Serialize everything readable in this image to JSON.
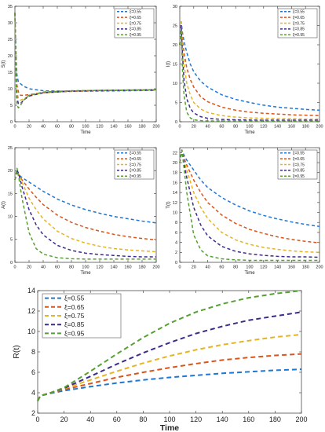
{
  "chart_data": [
    {
      "type": "line",
      "ylabel": "S(t)",
      "xlabel": "Time",
      "xlim": [
        0,
        200
      ],
      "ylim": [
        0,
        35
      ],
      "xticks": [
        0,
        20,
        40,
        60,
        80,
        100,
        120,
        140,
        160,
        180,
        200
      ],
      "yticks": [
        0,
        5,
        10,
        15,
        20,
        25,
        30,
        35
      ],
      "legend_position": "top-right",
      "series": [
        {
          "name": "ξ=0.55",
          "color": "#1f77d4",
          "x": [
            0,
            1,
            2,
            3,
            5,
            8,
            12,
            20,
            40,
            80,
            120,
            160,
            200
          ],
          "y": [
            33,
            25,
            18,
            14,
            12,
            11.5,
            10.8,
            10,
            9.4,
            9.2,
            9.3,
            9.4,
            9.5
          ]
        },
        {
          "name": "ξ=0.65",
          "color": "#d9541a",
          "x": [
            0,
            1,
            2,
            3,
            5,
            8,
            12,
            20,
            40,
            80,
            120,
            160,
            200
          ],
          "y": [
            33,
            23,
            15,
            11,
            9,
            8,
            8,
            8.2,
            8.8,
            9.2,
            9.4,
            9.5,
            9.6
          ]
        },
        {
          "name": "ξ=0.75",
          "color": "#e6b422",
          "x": [
            0,
            1,
            2,
            3,
            5,
            8,
            12,
            20,
            40,
            80,
            120,
            160,
            200
          ],
          "y": [
            33,
            22,
            13,
            9,
            7,
            6.5,
            7,
            7.8,
            8.7,
            9.3,
            9.5,
            9.6,
            9.7
          ]
        },
        {
          "name": "ξ=0.85",
          "color": "#3d2a8a",
          "x": [
            0,
            1,
            2,
            3,
            5,
            8,
            12,
            20,
            40,
            80,
            120,
            160,
            200
          ],
          "y": [
            33,
            21,
            11,
            7,
            5.5,
            5.5,
            6.5,
            7.8,
            8.8,
            9.3,
            9.5,
            9.6,
            9.7
          ]
        },
        {
          "name": "ξ=0.95",
          "color": "#56a031",
          "x": [
            0,
            1,
            2,
            3,
            5,
            8,
            12,
            20,
            40,
            80,
            120,
            160,
            200
          ],
          "y": [
            33,
            20,
            9,
            5,
            4.2,
            5,
            6.5,
            8,
            9,
            9.4,
            9.5,
            9.6,
            9.7
          ]
        }
      ]
    },
    {
      "type": "line",
      "ylabel": "I(t)",
      "xlabel": "Time",
      "xlim": [
        0,
        200
      ],
      "ylim": [
        0,
        30
      ],
      "xticks": [
        0,
        20,
        40,
        60,
        80,
        100,
        120,
        140,
        160,
        180,
        200
      ],
      "yticks": [
        0,
        5,
        10,
        15,
        20,
        25,
        30
      ],
      "legend_position": "top-right",
      "series": [
        {
          "name": "ξ=0.55",
          "color": "#1f77d4",
          "x": [
            0,
            2,
            4,
            6,
            10,
            15,
            20,
            30,
            40,
            60,
            80,
            100,
            120,
            140,
            160,
            180,
            200
          ],
          "y": [
            20,
            26,
            23,
            21,
            18,
            15,
            13,
            10.5,
            9,
            7,
            5.8,
            5,
            4.3,
            3.8,
            3.5,
            3.2,
            3
          ]
        },
        {
          "name": "ξ=0.65",
          "color": "#d9541a",
          "x": [
            0,
            2,
            4,
            6,
            10,
            15,
            20,
            30,
            40,
            60,
            80,
            100,
            120,
            140,
            160,
            180,
            200
          ],
          "y": [
            20,
            26,
            21,
            18,
            14,
            11,
            9,
            6.5,
            5.2,
            3.8,
            3,
            2.5,
            2.2,
            2,
            1.8,
            1.7,
            1.6
          ]
        },
        {
          "name": "ξ=0.75",
          "color": "#e6b422",
          "x": [
            0,
            2,
            4,
            6,
            10,
            15,
            20,
            30,
            40,
            60,
            80,
            100,
            120,
            140,
            160,
            180,
            200
          ],
          "y": [
            20,
            26,
            19,
            15,
            10,
            7,
            5,
            3.3,
            2.4,
            1.6,
            1.2,
            1,
            0.9,
            0.8,
            0.8,
            0.7,
            0.7
          ]
        },
        {
          "name": "ξ=0.85",
          "color": "#3d2a8a",
          "x": [
            0,
            2,
            4,
            6,
            10,
            15,
            20,
            30,
            40,
            60,
            80,
            100,
            120,
            140,
            160,
            180,
            200
          ],
          "y": [
            20,
            25,
            17,
            11,
            6,
            3.5,
            2.3,
            1.3,
            0.9,
            0.6,
            0.5,
            0.45,
            0.4,
            0.4,
            0.4,
            0.4,
            0.4
          ]
        },
        {
          "name": "ξ=0.95",
          "color": "#56a031",
          "x": [
            0,
            2,
            4,
            6,
            10,
            15,
            20,
            30,
            40,
            60,
            80,
            100,
            120,
            140,
            160,
            180,
            200
          ],
          "y": [
            20,
            24,
            13,
            7,
            2.5,
            1,
            0.5,
            0.3,
            0.2,
            0.2,
            0.2,
            0.2,
            0.2,
            0.2,
            0.2,
            0.2,
            0.2
          ]
        }
      ]
    },
    {
      "type": "line",
      "ylabel": "A(t)",
      "xlabel": "Time",
      "xlim": [
        0,
        200
      ],
      "ylim": [
        0,
        25
      ],
      "xticks": [
        0,
        20,
        40,
        60,
        80,
        100,
        120,
        140,
        160,
        180,
        200
      ],
      "yticks": [
        0,
        5,
        10,
        15,
        20,
        25
      ],
      "legend_position": "top-right",
      "series": [
        {
          "name": "ξ=0.55",
          "color": "#1f77d4",
          "x": [
            0,
            3,
            6,
            10,
            20,
            30,
            40,
            60,
            80,
            100,
            120,
            140,
            160,
            180,
            200
          ],
          "y": [
            18,
            19.5,
            19,
            18.5,
            17.5,
            16.5,
            15.5,
            13.8,
            12.5,
            11.5,
            10.7,
            10,
            9.5,
            9,
            8.6
          ]
        },
        {
          "name": "ξ=0.65",
          "color": "#d9541a",
          "x": [
            0,
            3,
            6,
            10,
            20,
            30,
            40,
            60,
            80,
            100,
            120,
            140,
            160,
            180,
            200
          ],
          "y": [
            18,
            19.8,
            19,
            18,
            16,
            14.2,
            12.6,
            10.3,
            8.7,
            7.6,
            6.8,
            6.1,
            5.6,
            5.2,
            4.9
          ]
        },
        {
          "name": "ξ=0.75",
          "color": "#e6b422",
          "x": [
            0,
            3,
            6,
            10,
            20,
            30,
            40,
            60,
            80,
            100,
            120,
            140,
            160,
            180,
            200
          ],
          "y": [
            18,
            20,
            19,
            17.5,
            14,
            11.5,
            9.5,
            6.8,
            5.2,
            4.2,
            3.5,
            3,
            2.7,
            2.5,
            2.3
          ]
        },
        {
          "name": "ξ=0.85",
          "color": "#3d2a8a",
          "x": [
            0,
            3,
            6,
            10,
            20,
            30,
            40,
            60,
            80,
            100,
            120,
            140,
            160,
            180,
            200
          ],
          "y": [
            18,
            20.2,
            19,
            16.5,
            11.5,
            8.2,
            6,
            3.7,
            2.6,
            2,
            1.7,
            1.5,
            1.3,
            1.2,
            1.2
          ]
        },
        {
          "name": "ξ=0.95",
          "color": "#56a031",
          "x": [
            0,
            3,
            6,
            10,
            20,
            30,
            40,
            60,
            80,
            100,
            120,
            140,
            160,
            180,
            200
          ],
          "y": [
            18,
            20.5,
            18,
            14,
            6.5,
            3,
            1.8,
            1,
            0.8,
            0.7,
            0.7,
            0.7,
            0.7,
            0.7,
            0.7
          ]
        }
      ]
    },
    {
      "type": "line",
      "ylabel": "T(t)",
      "xlabel": "Time",
      "xlim": [
        0,
        200
      ],
      "ylim": [
        0,
        23
      ],
      "xticks": [
        0,
        20,
        40,
        60,
        80,
        100,
        120,
        140,
        160,
        180,
        200
      ],
      "yticks": [
        0,
        2,
        4,
        6,
        8,
        10,
        12,
        14,
        16,
        18,
        20,
        22
      ],
      "legend_position": "top-right",
      "series": [
        {
          "name": "ξ=0.55",
          "color": "#1f77d4",
          "x": [
            0,
            3,
            6,
            10,
            20,
            30,
            40,
            60,
            80,
            100,
            120,
            140,
            160,
            180,
            200
          ],
          "y": [
            20,
            22.5,
            21.5,
            20.5,
            18.5,
            16.5,
            15,
            13,
            11.5,
            10.3,
            9.4,
            8.7,
            8.1,
            7.6,
            7.2
          ]
        },
        {
          "name": "ξ=0.65",
          "color": "#d9541a",
          "x": [
            0,
            3,
            6,
            10,
            20,
            30,
            40,
            60,
            80,
            100,
            120,
            140,
            160,
            180,
            200
          ],
          "y": [
            20,
            22.5,
            21,
            19.5,
            16.5,
            14,
            12,
            9.5,
            7.8,
            6.6,
            5.8,
            5.1,
            4.6,
            4.2,
            3.9
          ]
        },
        {
          "name": "ξ=0.75",
          "color": "#e6b422",
          "x": [
            0,
            3,
            6,
            10,
            20,
            30,
            40,
            60,
            80,
            100,
            120,
            140,
            160,
            180,
            200
          ],
          "y": [
            20,
            22.5,
            20.5,
            18.5,
            14,
            11,
            8.8,
            6,
            4.5,
            3.6,
            3,
            2.6,
            2.3,
            2.1,
            2
          ]
        },
        {
          "name": "ξ=0.85",
          "color": "#3d2a8a",
          "x": [
            0,
            3,
            6,
            10,
            20,
            30,
            40,
            60,
            80,
            100,
            120,
            140,
            160,
            180,
            200
          ],
          "y": [
            20,
            22.5,
            20,
            17,
            11,
            7.5,
            5.3,
            3.2,
            2.2,
            1.7,
            1.4,
            1.2,
            1.1,
            1.1,
            1
          ]
        },
        {
          "name": "ξ=0.95",
          "color": "#56a031",
          "x": [
            0,
            3,
            6,
            10,
            20,
            30,
            40,
            60,
            80,
            100,
            120,
            140,
            160,
            180,
            200
          ],
          "y": [
            20,
            22.5,
            19,
            14,
            5.5,
            2.5,
            1.3,
            0.7,
            0.5,
            0.4,
            0.4,
            0.4,
            0.4,
            0.4,
            0.4
          ]
        }
      ]
    },
    {
      "type": "line",
      "ylabel": "R(t)",
      "xlabel": "Time",
      "xlim": [
        0,
        200
      ],
      "ylim": [
        2,
        14
      ],
      "xticks": [
        0,
        20,
        40,
        60,
        80,
        100,
        120,
        140,
        160,
        180,
        200
      ],
      "yticks": [
        2,
        4,
        6,
        8,
        10,
        12,
        14
      ],
      "legend_position": "top-left",
      "series": [
        {
          "name": "ξ=0.55",
          "color": "#1f77d4",
          "x": [
            0,
            2,
            10,
            20,
            40,
            60,
            80,
            100,
            120,
            140,
            160,
            180,
            200
          ],
          "y": [
            3.2,
            3.7,
            3.95,
            4.2,
            4.6,
            4.95,
            5.25,
            5.5,
            5.7,
            5.9,
            6.05,
            6.2,
            6.3
          ]
        },
        {
          "name": "ξ=0.65",
          "color": "#d9541a",
          "x": [
            0,
            2,
            10,
            20,
            40,
            60,
            80,
            100,
            120,
            140,
            160,
            180,
            200
          ],
          "y": [
            3.2,
            3.7,
            4,
            4.3,
            4.9,
            5.5,
            6,
            6.45,
            6.85,
            7.2,
            7.45,
            7.65,
            7.8
          ]
        },
        {
          "name": "ξ=0.75",
          "color": "#e6b422",
          "x": [
            0,
            2,
            10,
            20,
            40,
            60,
            80,
            100,
            120,
            140,
            160,
            180,
            200
          ],
          "y": [
            3.2,
            3.7,
            4,
            4.4,
            5.25,
            6.1,
            6.9,
            7.6,
            8.2,
            8.7,
            9.1,
            9.45,
            9.7
          ]
        },
        {
          "name": "ξ=0.85",
          "color": "#3d2a8a",
          "x": [
            0,
            2,
            10,
            20,
            40,
            60,
            80,
            100,
            120,
            140,
            160,
            180,
            200
          ],
          "y": [
            3.2,
            3.7,
            4,
            4.45,
            5.6,
            6.8,
            7.9,
            8.9,
            9.8,
            10.5,
            11.1,
            11.5,
            11.9
          ]
        },
        {
          "name": "ξ=0.95",
          "color": "#56a031",
          "x": [
            0,
            2,
            10,
            20,
            40,
            60,
            80,
            100,
            120,
            140,
            160,
            180,
            200
          ],
          "y": [
            3.2,
            3.7,
            4,
            4.5,
            6.1,
            7.8,
            9.4,
            10.8,
            11.9,
            12.7,
            13.3,
            13.7,
            14
          ]
        }
      ]
    }
  ]
}
